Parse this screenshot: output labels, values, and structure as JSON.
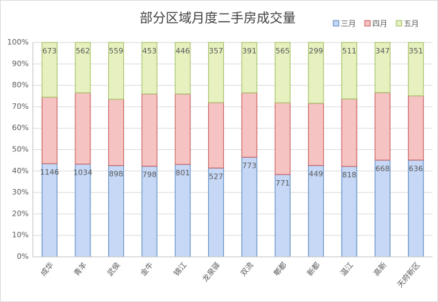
{
  "chart_data": {
    "type": "stacked-percent-bar",
    "title": "部分区域月度二手房成交量",
    "categories": [
      "成华",
      "青羊",
      "武侯",
      "金牛",
      "锦江",
      "龙泉驿",
      "双流",
      "郫都",
      "新都",
      "温江",
      "高新",
      "天府新区"
    ],
    "series": [
      {
        "name": "三月",
        "color": "#c6d8f6",
        "values": [
          1146,
          1034,
          898,
          798,
          801,
          527,
          773,
          771,
          449,
          818,
          668,
          636
        ]
      },
      {
        "name": "四月",
        "color": "#f6c3c3",
        "values": [
          817,
          795,
          652,
          637,
          611,
          388,
          499,
          673,
          306,
          611,
          467,
          423
        ]
      },
      {
        "name": "五月",
        "color": "#e6f1bf",
        "values": [
          673,
          562,
          559,
          453,
          446,
          357,
          391,
          565,
          299,
          511,
          347,
          351
        ]
      }
    ],
    "labeled_series": [
      "三月",
      "五月"
    ],
    "ylim": [
      0,
      100
    ],
    "yticks": [
      {
        "value": 0,
        "label": "0%"
      },
      {
        "value": 10,
        "label": "10%"
      },
      {
        "value": 20,
        "label": "20%"
      },
      {
        "value": 30,
        "label": "30%"
      },
      {
        "value": 40,
        "label": "40%"
      },
      {
        "value": 50,
        "label": "50%"
      },
      {
        "value": 60,
        "label": "60%"
      },
      {
        "value": 70,
        "label": "70%"
      },
      {
        "value": 80,
        "label": "80%"
      },
      {
        "value": 90,
        "label": "90%"
      },
      {
        "value": 100,
        "label": "100%"
      }
    ],
    "grid": true,
    "legend": "top-right"
  }
}
